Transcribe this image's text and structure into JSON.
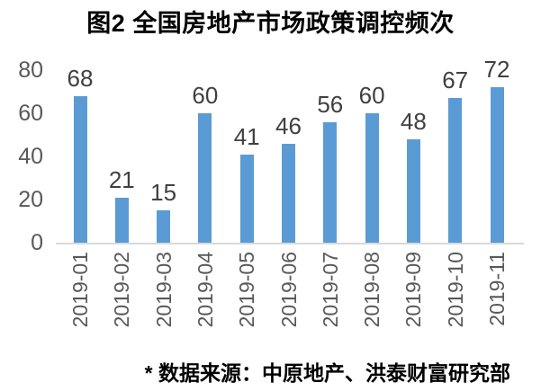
{
  "title": "图2 全国房地产市场政策调控频次",
  "source_note": "* 数据来源：中原地产、洪泰财富研究部",
  "colors": {
    "bar": "#5B9BD5",
    "axis_line": "#D9D9D9",
    "tick_label": "#595959",
    "category_label": "#595959",
    "value_label": "#404040",
    "title_text": "#000000"
  },
  "chart_data": {
    "type": "bar",
    "title": "图2 全国房地产市场政策调控频次",
    "categories": [
      "2019-01",
      "2019-02",
      "2019-03",
      "2019-04",
      "2019-05",
      "2019-06",
      "2019-07",
      "2019-08",
      "2019-09",
      "2019-10",
      "2019-11"
    ],
    "values": [
      68,
      21,
      15,
      60,
      41,
      46,
      56,
      60,
      48,
      67,
      72
    ],
    "xlabel": "",
    "ylabel": "",
    "ylim": [
      0,
      80
    ],
    "y_ticks": [
      0,
      20,
      40,
      60,
      80
    ],
    "grid": false,
    "legend": false,
    "data_labels": true,
    "source_note": "* 数据来源：中原地产、洪泰财富研究部"
  }
}
